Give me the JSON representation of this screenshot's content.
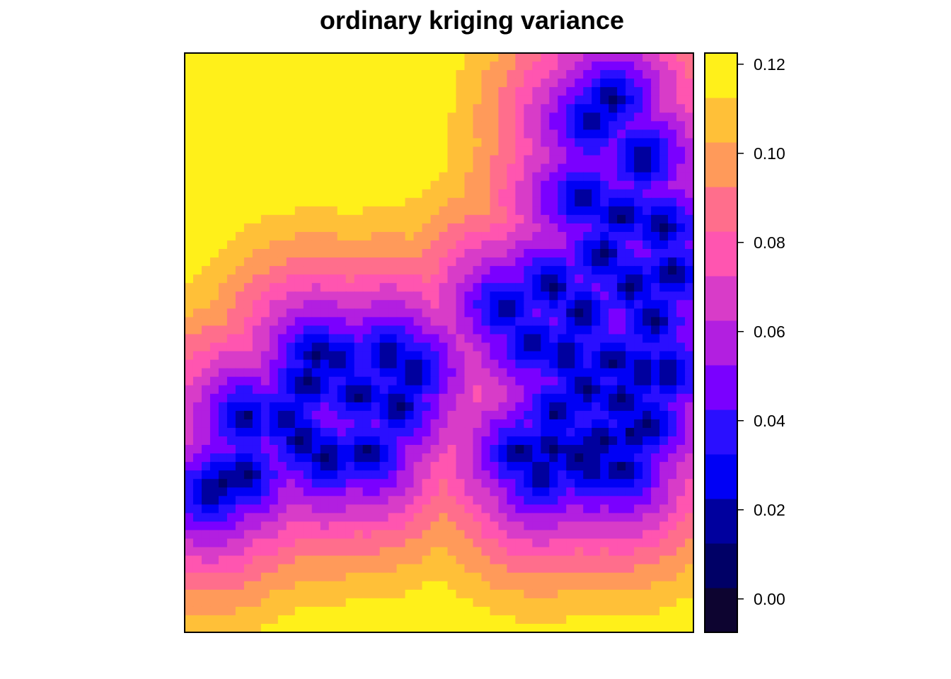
{
  "chart_data": {
    "type": "heatmap",
    "title": "ordinary kriging variance",
    "xlabel": "",
    "ylabel": "",
    "color_scale": {
      "breaks": [
        -0.0075,
        0.0025,
        0.0125,
        0.0225,
        0.0325,
        0.0425,
        0.0525,
        0.0625,
        0.0725,
        0.0825,
        0.0925,
        0.1025,
        0.1125,
        0.1225
      ],
      "colors": [
        "#0d0430",
        "#000066",
        "#00009e",
        "#0000f5",
        "#2a0fff",
        "#7a00ff",
        "#b21fe0",
        "#d83cc8",
        "#ff55b0",
        "#ff6e8c",
        "#ff9a5a",
        "#ffc038",
        "#fff01a"
      ],
      "tick_labels": [
        "0.00",
        "0.02",
        "0.04",
        "0.06",
        "0.08",
        "0.10",
        "0.12"
      ],
      "ticks": [
        0.0,
        0.02,
        0.04,
        0.06,
        0.08,
        0.1,
        0.12
      ],
      "range": [
        -0.0075,
        0.1225
      ]
    },
    "grid": false,
    "legend": "right",
    "sample_clusters": [
      {
        "points": [
          [
            0.84,
            0.92
          ],
          [
            0.8,
            0.88
          ],
          [
            0.9,
            0.82
          ],
          [
            0.78,
            0.75
          ],
          [
            0.86,
            0.72
          ],
          [
            0.94,
            0.7
          ],
          [
            0.82,
            0.65
          ],
          [
            0.72,
            0.6
          ],
          [
            0.88,
            0.6
          ],
          [
            0.96,
            0.62
          ],
          [
            0.78,
            0.55
          ],
          [
            0.92,
            0.54
          ],
          [
            0.63,
            0.56
          ],
          [
            0.68,
            0.5
          ],
          [
            0.75,
            0.48
          ],
          [
            0.84,
            0.47
          ],
          [
            0.9,
            0.45
          ],
          [
            0.79,
            0.42
          ],
          [
            0.86,
            0.4
          ],
          [
            0.95,
            0.45
          ],
          [
            0.73,
            0.38
          ],
          [
            0.88,
            0.34
          ],
          [
            0.8,
            0.32
          ],
          [
            0.91,
            0.36
          ]
        ]
      },
      {
        "points": [
          [
            0.66,
            0.31
          ],
          [
            0.72,
            0.32
          ],
          [
            0.77,
            0.3
          ],
          [
            0.7,
            0.27
          ],
          [
            0.8,
            0.28
          ],
          [
            0.86,
            0.28
          ],
          [
            0.82,
            0.33
          ]
        ]
      },
      {
        "points": [
          [
            0.3,
            0.47
          ],
          [
            0.26,
            0.48
          ],
          [
            0.4,
            0.48
          ],
          [
            0.24,
            0.43
          ],
          [
            0.34,
            0.41
          ],
          [
            0.45,
            0.45
          ],
          [
            0.42,
            0.39
          ],
          [
            0.2,
            0.37
          ],
          [
            0.12,
            0.37
          ],
          [
            0.23,
            0.33
          ],
          [
            0.28,
            0.3
          ],
          [
            0.36,
            0.31
          ],
          [
            0.12,
            0.27
          ],
          [
            0.05,
            0.24
          ],
          [
            0.08,
            0.26
          ]
        ]
      }
    ]
  }
}
